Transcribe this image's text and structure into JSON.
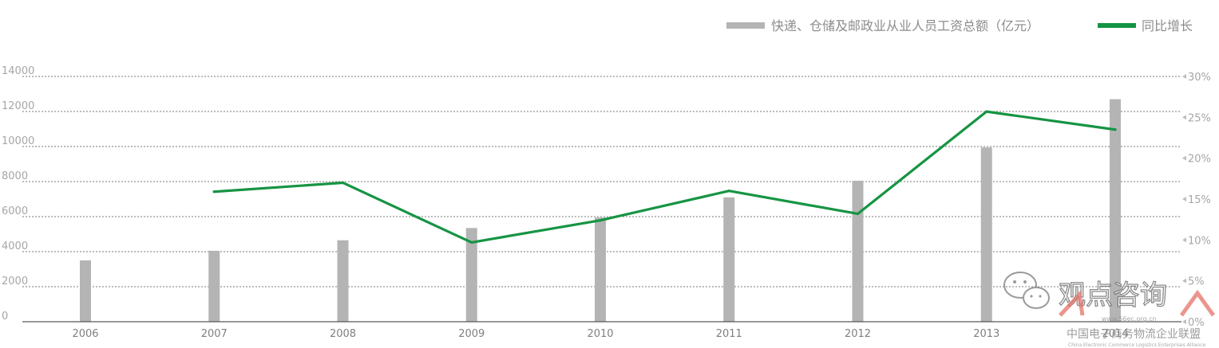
{
  "chart_data": {
    "type": "bar",
    "categories": [
      "2006",
      "2007",
      "2008",
      "2009",
      "2010",
      "2011",
      "2012",
      "2013",
      "2014"
    ],
    "series": [
      {
        "name": "快递、仓储及邮政业从业人员工资总额（亿元）",
        "kind": "bar",
        "axis": "left",
        "color": "#b4b4b4",
        "values": [
          3500,
          4050,
          4650,
          5350,
          5950,
          7100,
          8050,
          9950,
          12700
        ]
      },
      {
        "name": "同比增长",
        "kind": "line",
        "axis": "right",
        "color": "#169443",
        "values": [
          null,
          15.9,
          17.0,
          9.7,
          12.4,
          16.0,
          13.2,
          25.7,
          23.5
        ]
      }
    ],
    "y_left": {
      "ticks": [
        "0",
        "2000",
        "4000",
        "6000",
        "8000",
        "10000",
        "12000",
        "14000"
      ],
      "ylim": [
        0,
        14000
      ]
    },
    "y_right": {
      "ticks": [
        "0%",
        "5%",
        "10%",
        "15%",
        "20%",
        "25%",
        "30%"
      ],
      "ylim": [
        0,
        30
      ]
    },
    "grid": "dotted horizontal",
    "legend": "top-right"
  },
  "watermark": {
    "brand_text": "观点咨询",
    "url": "www.56ec.org.cn",
    "org_cn": "中国电子商务物流企业联盟",
    "org_en": "China Electronic Commerce Logistics Enterprises Alliance"
  }
}
